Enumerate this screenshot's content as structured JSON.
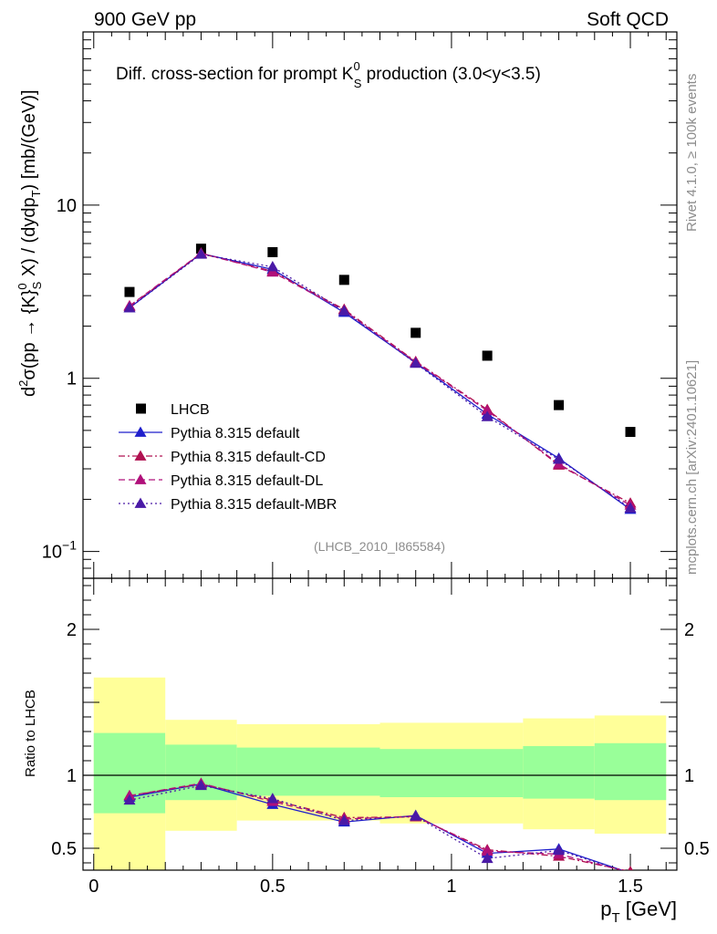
{
  "header": {
    "left": "900 GeV pp",
    "right": "Soft QCD"
  },
  "side_labels": {
    "rivet": "Rivet 4.1.0, ≥ 100k events",
    "mcplots": "mcplots.cern.ch [arXiv:2401.10621]"
  },
  "colors": {
    "data": "#000000",
    "default": "#1f1fcc",
    "cd": "#b01050",
    "dl": "#b0107a",
    "mbr": "#4a1aa6",
    "band_inner": "#99ff99",
    "band_outer": "#ffff99"
  },
  "chart_data": [
    {
      "type": "scatter",
      "panel": "main",
      "title": "Diff. cross-section for prompt K",
      "title_sup": "0",
      "title_sub": "S",
      "title_tail": " production (3.0<y<3.5)",
      "ylabel": "d²σ(pp → {K}⁰S X) / (dydpT) [mb/(GeV)]",
      "ylabel_parts": {
        "a": "d",
        "a_sup": "2",
        "b": "σ(pp → {K}",
        "b_sup": "0",
        "b_sub": "S",
        "c": " X) / (dydp",
        "c_sub": "T",
        "d": ") [mb/(GeV)]"
      },
      "yscale": "log",
      "ylim": [
        0.07,
        100
      ],
      "xlim": [
        -0.03,
        1.63
      ],
      "ytick_labels": [
        {
          "value": 0.1,
          "base": "10",
          "exp": "−1"
        },
        {
          "value": 1,
          "base": "1",
          "exp": ""
        },
        {
          "value": 10,
          "base": "10",
          "exp": ""
        }
      ],
      "watermark": "(LHCB_2010_I865584)",
      "x": [
        0.1,
        0.3,
        0.5,
        0.7,
        0.9,
        1.1,
        1.3,
        1.5
      ],
      "series": [
        {
          "name": "LHCB",
          "style": "data",
          "values": [
            3.15,
            5.6,
            5.35,
            3.7,
            1.83,
            1.35,
            0.7,
            0.49
          ]
        },
        {
          "name": "Pythia 8.315 default",
          "style": "default",
          "values": [
            2.55,
            5.25,
            4.25,
            2.4,
            1.23,
            0.62,
            0.345,
            0.175
          ]
        },
        {
          "name": "Pythia 8.315 default-CD",
          "style": "cd",
          "values": [
            2.6,
            5.25,
            4.15,
            2.5,
            1.25,
            0.66,
            0.315,
            0.19
          ]
        },
        {
          "name": "Pythia 8.315 default-DL",
          "style": "dl",
          "values": [
            2.62,
            5.28,
            4.1,
            2.46,
            1.24,
            0.65,
            0.32,
            0.185
          ]
        },
        {
          "name": "Pythia 8.315 default-MBR",
          "style": "mbr",
          "values": [
            2.55,
            5.2,
            4.4,
            2.45,
            1.22,
            0.6,
            0.34,
            0.178
          ]
        }
      ]
    },
    {
      "type": "line",
      "panel": "ratio",
      "ylabel": "Ratio to LHCB",
      "xlabel": "p",
      "xlabel_sub": "T",
      "xlabel_tail": " [GeV]",
      "ylim": [
        0.35,
        2.35
      ],
      "xlim": [
        -0.03,
        1.63
      ],
      "ytick_labels": [
        {
          "value": 0.5,
          "label": "0.5"
        },
        {
          "value": 1,
          "label": "1"
        },
        {
          "value": 2,
          "label": "2"
        }
      ],
      "xtick_labels": [
        {
          "value": 0,
          "label": "0"
        },
        {
          "value": 0.5,
          "label": "0.5"
        },
        {
          "value": 1,
          "label": "1"
        },
        {
          "value": 1.5,
          "label": "1.5"
        }
      ],
      "bands": [
        {
          "xmin": 0.0,
          "xmax": 0.2,
          "inner": [
            0.74,
            1.29
          ],
          "outer": [
            0.0,
            1.67
          ]
        },
        {
          "xmin": 0.2,
          "xmax": 0.4,
          "inner": [
            0.83,
            1.21
          ],
          "outer": [
            0.62,
            1.38
          ]
        },
        {
          "xmin": 0.4,
          "xmax": 0.8,
          "inner": [
            0.86,
            1.19
          ],
          "outer": [
            0.69,
            1.35
          ]
        },
        {
          "xmin": 0.8,
          "xmax": 1.2,
          "inner": [
            0.85,
            1.18
          ],
          "outer": [
            0.67,
            1.36
          ]
        },
        {
          "xmin": 1.2,
          "xmax": 1.4,
          "inner": [
            0.84,
            1.2
          ],
          "outer": [
            0.63,
            1.39
          ]
        },
        {
          "xmin": 1.4,
          "xmax": 1.6,
          "inner": [
            0.83,
            1.22
          ],
          "outer": [
            0.6,
            1.41
          ]
        }
      ],
      "x": [
        0.1,
        0.3,
        0.5,
        0.7,
        0.9,
        1.1,
        1.3,
        1.5
      ],
      "series": [
        {
          "name": "Pythia 8.315 default",
          "style": "default",
          "values": [
            0.85,
            0.94,
            0.8,
            0.68,
            0.725,
            0.465,
            0.495,
            0.33
          ]
        },
        {
          "name": "Pythia 8.315 default-CD",
          "style": "cd",
          "values": [
            0.86,
            0.94,
            0.83,
            0.71,
            0.715,
            0.49,
            0.445,
            0.34
          ]
        },
        {
          "name": "Pythia 8.315 default-DL",
          "style": "dl",
          "values": [
            0.86,
            0.945,
            0.82,
            0.7,
            0.72,
            0.48,
            0.46,
            0.335
          ]
        },
        {
          "name": "Pythia 8.315 default-MBR",
          "style": "mbr",
          "values": [
            0.83,
            0.93,
            0.84,
            0.69,
            0.72,
            0.43,
            0.485,
            0.33
          ]
        }
      ]
    }
  ]
}
